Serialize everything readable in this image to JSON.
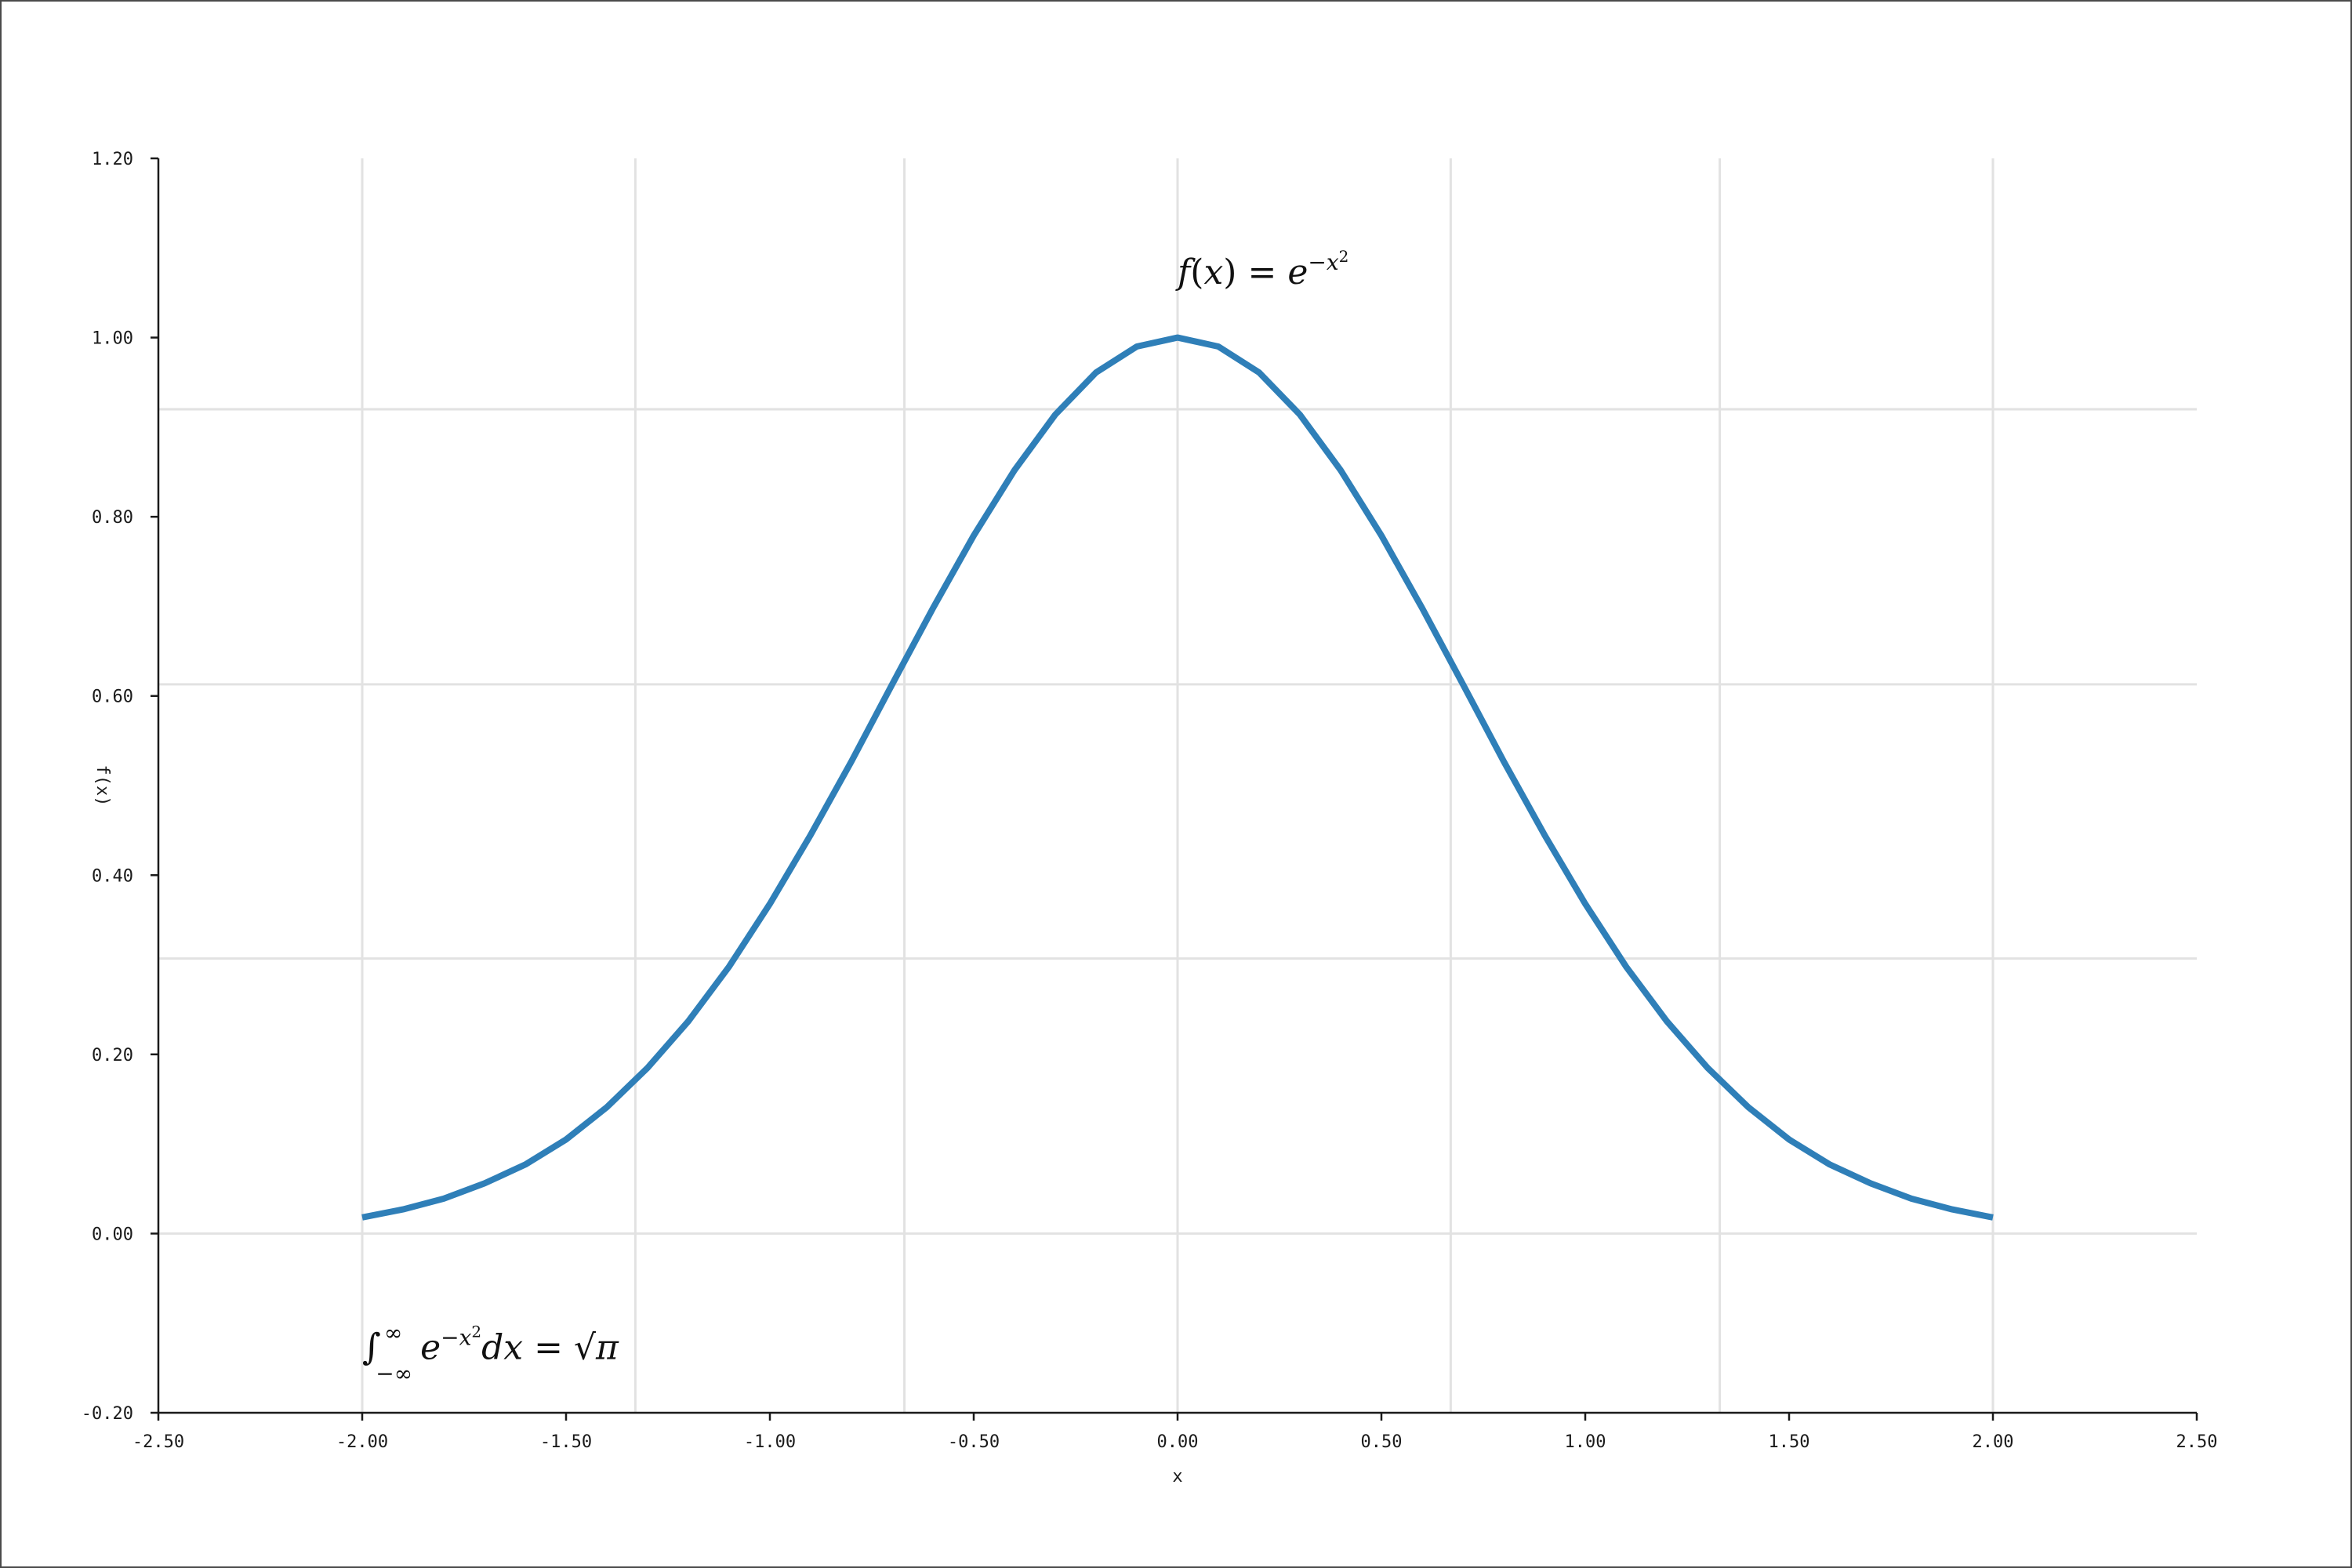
{
  "chart_data": {
    "type": "line",
    "title": "",
    "xlabel": "x",
    "ylabel": "f(x)",
    "xlim": [
      -2.5,
      2.5
    ],
    "ylim": [
      -0.2,
      1.2
    ],
    "x_ticks": [
      "-2.50",
      "-2.00",
      "-1.50",
      "-1.00",
      "-0.50",
      "0.00",
      "0.50",
      "1.00",
      "1.50",
      "2.00",
      "2.50"
    ],
    "y_ticks": [
      "-0.20",
      "0.00",
      "0.20",
      "0.40",
      "0.60",
      "0.80",
      "1.00",
      "1.20"
    ],
    "grid": true,
    "line_color": "#2f7fb8",
    "series": [
      {
        "x": [
          -2.0,
          -1.9,
          -1.8,
          -1.7,
          -1.6,
          -1.5,
          -1.4,
          -1.3,
          -1.2,
          -1.1,
          -1.0,
          -0.9,
          -0.8,
          -0.7,
          -0.6,
          -0.5,
          -0.4,
          -0.3,
          -0.2,
          -0.1,
          0.0,
          0.1,
          0.2,
          0.3,
          0.4,
          0.5,
          0.6,
          0.7,
          0.8,
          0.9,
          1.0,
          1.1,
          1.2,
          1.3,
          1.4,
          1.5,
          1.6,
          1.7,
          1.8,
          1.9,
          2.0
        ],
        "values": [
          0.018,
          0.027,
          0.039,
          0.056,
          0.077,
          0.105,
          0.141,
          0.185,
          0.237,
          0.298,
          0.368,
          0.445,
          0.527,
          0.613,
          0.698,
          0.779,
          0.852,
          0.914,
          0.961,
          0.99,
          1.0,
          0.99,
          0.961,
          0.914,
          0.852,
          0.779,
          0.698,
          0.613,
          0.527,
          0.445,
          0.368,
          0.298,
          0.237,
          0.185,
          0.141,
          0.105,
          0.077,
          0.056,
          0.039,
          0.027,
          0.018
        ]
      }
    ],
    "annotations": [
      {
        "id": "formula",
        "at": [
          0.0,
          1.06
        ],
        "lhs": "f",
        "open": "(",
        "var": "x",
        "close": ")",
        "eq": " = ",
        "base": "e",
        "exp": "−x",
        "sq": "2"
      },
      {
        "id": "integral",
        "at": [
          -2.0,
          -0.14
        ],
        "integral": "∫",
        "upper": "∞",
        "lower": "−∞",
        "base": "e",
        "exp": "−x",
        "sq": "2",
        "dx": "dx",
        "eq": " = ",
        "sqrt": "√",
        "pi": "π"
      }
    ]
  }
}
